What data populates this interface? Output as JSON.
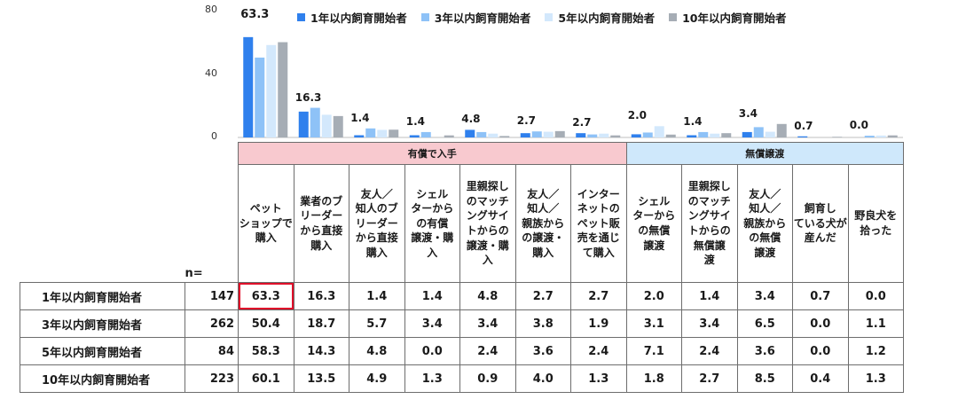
{
  "chart_data": {
    "type": "bar",
    "ylim": [
      0,
      80
    ],
    "yticks": [
      0,
      40,
      80
    ],
    "group_labels": [
      {
        "label": "有償で入手",
        "span": 7
      },
      {
        "label": "無償譲渡",
        "span": 5
      }
    ],
    "categories": [
      "ペット\nショップで\n購入",
      "業者のブ\nリーダー\nから直接\n購入",
      "友人／\n知人のブ\nリーダー\nから直接\n購入",
      "シェル\nターから\nの有償\n譲渡・購\n入",
      "里親探し\nのマッチ\nングサイ\nトからの\n譲渡・購\n入",
      "友人／\n知人／\n親族から\nの譲渡・\n購入",
      "インター\nネットの\nペット販\n売を通じ\nて購入",
      "シェル\nターから\nの無償\n譲渡",
      "里親探し\nのマッチ\nングサイ\nトからの\n無償譲\n渡",
      "友人／\n知人／\n親族から\nの無償\n譲渡",
      "飼育し\nている犬が\n産んだ",
      "野良犬を\n拾った"
    ],
    "series": [
      {
        "name": "1年以内飼育開始者",
        "n": 147,
        "color": "#2f80ed",
        "values": [
          63.3,
          16.3,
          1.4,
          1.4,
          4.8,
          2.7,
          2.7,
          2.0,
          1.4,
          3.4,
          0.7,
          0.0
        ]
      },
      {
        "name": "3年以内飼育開始者",
        "n": 262,
        "color": "#8ec2f7",
        "values": [
          50.4,
          18.7,
          5.7,
          3.4,
          3.4,
          3.8,
          1.9,
          3.1,
          3.4,
          6.5,
          0.0,
          1.1
        ]
      },
      {
        "name": "5年以内飼育開始者",
        "n": 84,
        "color": "#d3e8fc",
        "values": [
          58.3,
          14.3,
          4.8,
          0.0,
          2.4,
          3.6,
          2.4,
          7.1,
          2.4,
          3.6,
          0.0,
          1.2
        ]
      },
      {
        "name": "10年以内飼育開始者",
        "n": 223,
        "color": "#a6adb5",
        "values": [
          60.1,
          13.5,
          4.9,
          1.3,
          0.9,
          4.0,
          1.3,
          1.8,
          2.7,
          8.5,
          0.4,
          1.3
        ]
      }
    ],
    "data_labels_series": "1年以内飼育開始者",
    "n_label": "n=",
    "legend": "top"
  }
}
